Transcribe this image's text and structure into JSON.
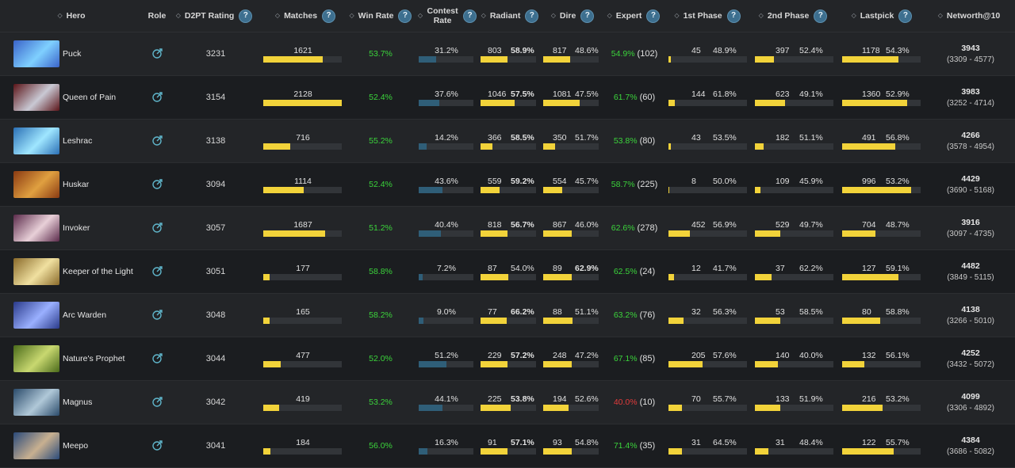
{
  "headers": {
    "hero": "Hero",
    "role": "Role",
    "rating": "D2PT Rating",
    "matches": "Matches",
    "winrate": "Win Rate",
    "contest": "Contest Rate",
    "radiant": "Radiant",
    "dire": "Dire",
    "expert": "Expert",
    "phase1": "1st Phase",
    "phase2": "2nd Phase",
    "lastpick": "Lastpick",
    "networth": "Networth@10",
    "help": "?"
  },
  "colors": {
    "green": "#3bd43b",
    "red": "#e23b3b",
    "yellow_bar": "#f2d33a",
    "blue_bar": "#2f5e78"
  },
  "rows": [
    {
      "hero": "Puck",
      "portrait": [
        "#3a63c9",
        "#7fd0ff"
      ],
      "role_icon": "target-icon",
      "rating": "3231",
      "matches": "1621",
      "matches_frac": 0.76,
      "winrate": "53.7%",
      "winrate_c": "green",
      "contest": "31.2%",
      "contest_frac": 0.312,
      "radiant": "803",
      "radiant_frac": 0.48,
      "radiant_pct": "58.9%",
      "radiant_c": "green bold",
      "dire": "817",
      "dire_frac": 0.49,
      "dire_pct": "48.6%",
      "dire_c": "red",
      "expert": "54.9%",
      "expert_c": "green",
      "expert_n": "(102)",
      "p1": "45",
      "p1_frac": 0.03,
      "p1_pct": "48.9%",
      "p1_c": "red",
      "p2": "397",
      "p2_frac": 0.24,
      "p2_pct": "52.4%",
      "p2_c": "green",
      "lp": "1178",
      "lp_frac": 0.72,
      "lp_pct": "54.3%",
      "lp_c": "green",
      "nw": "3943",
      "nw_range": "(3309 - 4577)"
    },
    {
      "hero": "Queen of Pain",
      "portrait": [
        "#5a1418",
        "#c9c9d4"
      ],
      "role_icon": "target-icon",
      "rating": "3154",
      "matches": "2128",
      "matches_frac": 1.0,
      "winrate": "52.4%",
      "winrate_c": "green",
      "contest": "37.6%",
      "contest_frac": 0.376,
      "radiant": "1046",
      "radiant_frac": 0.62,
      "radiant_pct": "57.5%",
      "radiant_c": "green bold",
      "dire": "1081",
      "dire_frac": 0.65,
      "dire_pct": "47.5%",
      "dire_c": "red",
      "expert": "61.7%",
      "expert_c": "green",
      "expert_n": "(60)",
      "p1": "144",
      "p1_frac": 0.08,
      "p1_pct": "61.8%",
      "p1_c": "green",
      "p2": "623",
      "p2_frac": 0.38,
      "p2_pct": "49.1%",
      "p2_c": "red",
      "lp": "1360",
      "lp_frac": 0.83,
      "lp_pct": "52.9%",
      "lp_c": "green",
      "nw": "3983",
      "nw_range": "(3252 - 4714)"
    },
    {
      "hero": "Leshrac",
      "portrait": [
        "#2a6fb5",
        "#9fe6ff"
      ],
      "role_icon": "target-icon",
      "rating": "3138",
      "matches": "716",
      "matches_frac": 0.34,
      "winrate": "55.2%",
      "winrate_c": "green",
      "contest": "14.2%",
      "contest_frac": 0.142,
      "radiant": "366",
      "radiant_frac": 0.22,
      "radiant_pct": "58.5%",
      "radiant_c": "green bold",
      "dire": "350",
      "dire_frac": 0.21,
      "dire_pct": "51.7%",
      "dire_c": "green",
      "expert": "53.8%",
      "expert_c": "green",
      "expert_n": "(80)",
      "p1": "43",
      "p1_frac": 0.03,
      "p1_pct": "53.5%",
      "p1_c": "green",
      "p2": "182",
      "p2_frac": 0.11,
      "p2_pct": "51.1%",
      "p2_c": "green",
      "lp": "491",
      "lp_frac": 0.68,
      "lp_pct": "56.8%",
      "lp_c": "green",
      "nw": "4266",
      "nw_range": "(3578 - 4954)"
    },
    {
      "hero": "Huskar",
      "portrait": [
        "#8a3a12",
        "#e0a040"
      ],
      "role_icon": "target-icon",
      "rating": "3094",
      "matches": "1114",
      "matches_frac": 0.52,
      "winrate": "52.4%",
      "winrate_c": "green",
      "contest": "43.6%",
      "contest_frac": 0.436,
      "radiant": "559",
      "radiant_frac": 0.34,
      "radiant_pct": "59.2%",
      "radiant_c": "green bold",
      "dire": "554",
      "dire_frac": 0.34,
      "dire_pct": "45.7%",
      "dire_c": "red",
      "expert": "58.7%",
      "expert_c": "green",
      "expert_n": "(225)",
      "p1": "8",
      "p1_frac": 0.01,
      "p1_pct": "50.0%",
      "p1_c": "green",
      "p2": "109",
      "p2_frac": 0.07,
      "p2_pct": "45.9%",
      "p2_c": "red",
      "lp": "996",
      "lp_frac": 0.88,
      "lp_pct": "53.2%",
      "lp_c": "green",
      "nw": "4429",
      "nw_range": "(3690 - 5168)"
    },
    {
      "hero": "Invoker",
      "portrait": [
        "#5a2a4a",
        "#e8d0d8"
      ],
      "role_icon": "target-icon",
      "rating": "3057",
      "matches": "1687",
      "matches_frac": 0.79,
      "winrate": "51.2%",
      "winrate_c": "green",
      "contest": "40.4%",
      "contest_frac": 0.404,
      "radiant": "818",
      "radiant_frac": 0.49,
      "radiant_pct": "56.7%",
      "radiant_c": "green bold",
      "dire": "867",
      "dire_frac": 0.52,
      "dire_pct": "46.0%",
      "dire_c": "red",
      "expert": "62.6%",
      "expert_c": "green",
      "expert_n": "(278)",
      "p1": "452",
      "p1_frac": 0.27,
      "p1_pct": "56.9%",
      "p1_c": "green",
      "p2": "529",
      "p2_frac": 0.32,
      "p2_pct": "49.7%",
      "p2_c": "red",
      "lp": "704",
      "lp_frac": 0.42,
      "lp_pct": "48.7%",
      "lp_c": "red",
      "nw": "3916",
      "nw_range": "(3097 - 4735)"
    },
    {
      "hero": "Keeper of the Light",
      "portrait": [
        "#8a6a2a",
        "#f0e0a0"
      ],
      "role_icon": "target-icon",
      "rating": "3051",
      "matches": "177",
      "matches_frac": 0.08,
      "winrate": "58.8%",
      "winrate_c": "green",
      "contest": "7.2%",
      "contest_frac": 0.072,
      "radiant": "87",
      "radiant_frac": 0.5,
      "radiant_pct": "54.0%",
      "radiant_c": "green",
      "dire": "89",
      "dire_frac": 0.51,
      "dire_pct": "62.9%",
      "dire_c": "green bold",
      "expert": "62.5%",
      "expert_c": "green",
      "expert_n": "(24)",
      "p1": "12",
      "p1_frac": 0.07,
      "p1_pct": "41.7%",
      "p1_c": "red",
      "p2": "37",
      "p2_frac": 0.21,
      "p2_pct": "62.2%",
      "p2_c": "green",
      "lp": "127",
      "lp_frac": 0.72,
      "lp_pct": "59.1%",
      "lp_c": "green",
      "nw": "4482",
      "nw_range": "(3849 - 5115)"
    },
    {
      "hero": "Arc Warden",
      "portrait": [
        "#2a3a8a",
        "#9ab0ff"
      ],
      "role_icon": "target-icon",
      "rating": "3048",
      "matches": "165",
      "matches_frac": 0.08,
      "winrate": "58.2%",
      "winrate_c": "green",
      "contest": "9.0%",
      "contest_frac": 0.09,
      "radiant": "77",
      "radiant_frac": 0.47,
      "radiant_pct": "66.2%",
      "radiant_c": "green bold",
      "dire": "88",
      "dire_frac": 0.53,
      "dire_pct": "51.1%",
      "dire_c": "green",
      "expert": "63.2%",
      "expert_c": "green",
      "expert_n": "(76)",
      "p1": "32",
      "p1_frac": 0.19,
      "p1_pct": "56.3%",
      "p1_c": "green",
      "p2": "53",
      "p2_frac": 0.32,
      "p2_pct": "58.5%",
      "p2_c": "green",
      "lp": "80",
      "lp_frac": 0.48,
      "lp_pct": "58.8%",
      "lp_c": "green",
      "nw": "4138",
      "nw_range": "(3266 - 5010)"
    },
    {
      "hero": "Nature's Prophet",
      "portrait": [
        "#4a6a1a",
        "#c8d870"
      ],
      "role_icon": "target-icon",
      "rating": "3044",
      "matches": "477",
      "matches_frac": 0.22,
      "winrate": "52.0%",
      "winrate_c": "green",
      "contest": "51.2%",
      "contest_frac": 0.512,
      "radiant": "229",
      "radiant_frac": 0.48,
      "radiant_pct": "57.2%",
      "radiant_c": "green bold",
      "dire": "248",
      "dire_frac": 0.52,
      "dire_pct": "47.2%",
      "dire_c": "red",
      "expert": "67.1%",
      "expert_c": "green",
      "expert_n": "(85)",
      "p1": "205",
      "p1_frac": 0.43,
      "p1_pct": "57.6%",
      "p1_c": "green",
      "p2": "140",
      "p2_frac": 0.29,
      "p2_pct": "40.0%",
      "p2_c": "red",
      "lp": "132",
      "lp_frac": 0.28,
      "lp_pct": "56.1%",
      "lp_c": "green",
      "nw": "4252",
      "nw_range": "(3432 - 5072)"
    },
    {
      "hero": "Magnus",
      "portrait": [
        "#2a4a6a",
        "#b0c8d8"
      ],
      "role_icon": "target-icon",
      "rating": "3042",
      "matches": "419",
      "matches_frac": 0.2,
      "winrate": "53.2%",
      "winrate_c": "green",
      "contest": "44.1%",
      "contest_frac": 0.441,
      "radiant": "225",
      "radiant_frac": 0.54,
      "radiant_pct": "53.8%",
      "radiant_c": "green bold",
      "dire": "194",
      "dire_frac": 0.46,
      "dire_pct": "52.6%",
      "dire_c": "green",
      "expert": "40.0%",
      "expert_c": "red",
      "expert_n": "(10)",
      "p1": "70",
      "p1_frac": 0.17,
      "p1_pct": "55.7%",
      "p1_c": "green",
      "p2": "133",
      "p2_frac": 0.32,
      "p2_pct": "51.9%",
      "p2_c": "green",
      "lp": "216",
      "lp_frac": 0.52,
      "lp_pct": "53.2%",
      "lp_c": "green",
      "nw": "4099",
      "nw_range": "(3306 - 4892)"
    },
    {
      "hero": "Meepo",
      "portrait": [
        "#2a4a7a",
        "#c8b090"
      ],
      "role_icon": "target-icon",
      "rating": "3041",
      "matches": "184",
      "matches_frac": 0.09,
      "winrate": "56.0%",
      "winrate_c": "green",
      "contest": "16.3%",
      "contest_frac": 0.163,
      "radiant": "91",
      "radiant_frac": 0.49,
      "radiant_pct": "57.1%",
      "radiant_c": "green bold",
      "dire": "93",
      "dire_frac": 0.51,
      "dire_pct": "54.8%",
      "dire_c": "green",
      "expert": "71.4%",
      "expert_c": "green",
      "expert_n": "(35)",
      "p1": "31",
      "p1_frac": 0.17,
      "p1_pct": "64.5%",
      "p1_c": "green",
      "p2": "31",
      "p2_frac": 0.17,
      "p2_pct": "48.4%",
      "p2_c": "red",
      "lp": "122",
      "lp_frac": 0.66,
      "lp_pct": "55.7%",
      "lp_c": "green",
      "nw": "4384",
      "nw_range": "(3686 - 5082)"
    }
  ]
}
